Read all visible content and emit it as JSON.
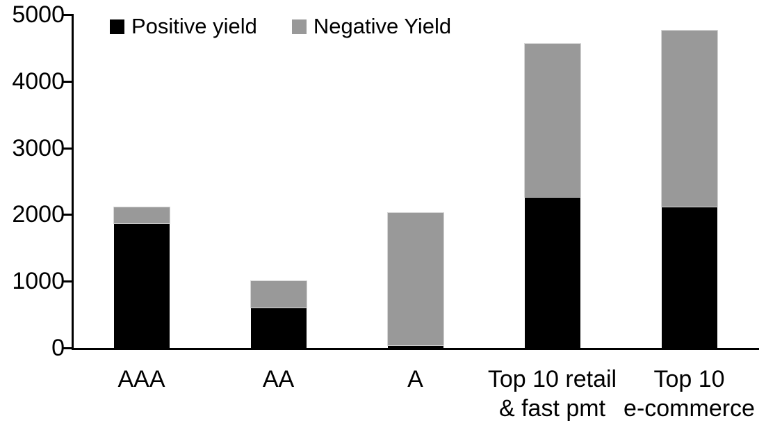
{
  "chart_data": {
    "type": "bar",
    "stacked": true,
    "title": "",
    "xlabel": "",
    "ylabel": "",
    "categories": [
      "AAA",
      "AA",
      "A",
      "Top 10 retail\n& fast pmt",
      "Top 10\ne-commerce"
    ],
    "series": [
      {
        "name": "Positive yield",
        "color": "#000000",
        "values": [
          1870,
          610,
          40,
          2270,
          2120
        ]
      },
      {
        "name": "Negative Yield",
        "color": "#999999",
        "values": [
          240,
          390,
          1990,
          2290,
          2640
        ]
      }
    ],
    "totals": [
      2110,
      1000,
      2030,
      4560,
      4760
    ],
    "ylim": [
      0,
      5000
    ],
    "yticks": [
      "0",
      "1000",
      "2000",
      "3000",
      "4000",
      "5000"
    ],
    "grid": false,
    "legend_position": "top-left"
  },
  "colors": {
    "background": "#ffffff",
    "axis": "#000000",
    "text": "#000000",
    "positive_series": "#000000",
    "negative_series": "#999999",
    "segment_edge": "#d6d6d6"
  }
}
